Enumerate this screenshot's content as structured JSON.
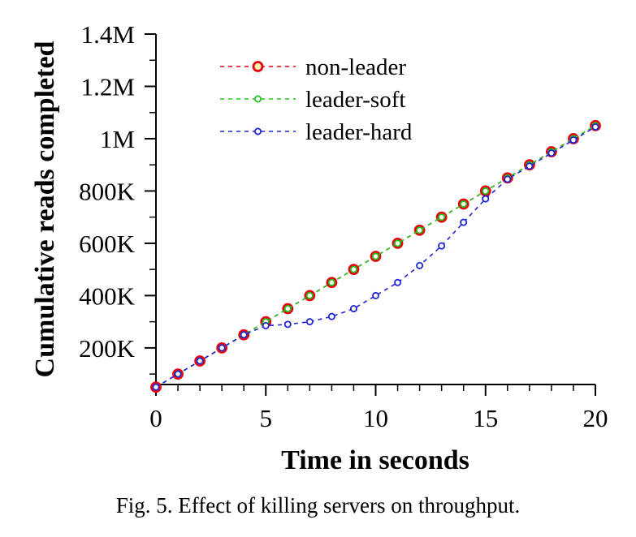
{
  "chart_data": {
    "type": "line",
    "title": "",
    "xlabel": "Time in seconds",
    "ylabel": "Cumulative reads completed",
    "xlim": [
      0,
      20
    ],
    "ylim": [
      60000,
      1400000
    ],
    "x_ticks": [
      0,
      5,
      10,
      15,
      20
    ],
    "x_tick_labels": [
      "0",
      "5",
      "10",
      "15",
      "20"
    ],
    "y_ticks": [
      200000,
      400000,
      600000,
      800000,
      1000000,
      1200000,
      1400000
    ],
    "y_tick_labels": [
      "200K",
      "400K",
      "600K",
      "800K",
      "1M",
      "1.2M",
      "1.4M"
    ],
    "legend_position": "top-left",
    "x": [
      0,
      1,
      2,
      3,
      4,
      5,
      6,
      7,
      8,
      9,
      10,
      11,
      12,
      13,
      14,
      15,
      16,
      17,
      18,
      19,
      20
    ],
    "series": [
      {
        "name": "non-leader",
        "color": "#e8000f",
        "marker": "large-open-circle",
        "values": [
          50000,
          100000,
          150000,
          200000,
          250000,
          300000,
          350000,
          400000,
          450000,
          500000,
          550000,
          600000,
          650000,
          700000,
          750000,
          800000,
          850000,
          900000,
          950000,
          1000000,
          1050000
        ]
      },
      {
        "name": "leader-soft",
        "color": "#22c41c",
        "marker": "small-open-circle",
        "values": [
          50000,
          100000,
          150000,
          200000,
          250000,
          300000,
          350000,
          400000,
          450000,
          500000,
          550000,
          600000,
          650000,
          700000,
          750000,
          800000,
          850000,
          900000,
          950000,
          1000000,
          1050000
        ]
      },
      {
        "name": "leader-hard",
        "color": "#1f26d4",
        "marker": "small-open-circle",
        "values": [
          50000,
          100000,
          150000,
          200000,
          250000,
          285000,
          290000,
          300000,
          320000,
          350000,
          400000,
          450000,
          515000,
          590000,
          680000,
          770000,
          845000,
          895000,
          945000,
          995000,
          1045000
        ]
      }
    ]
  },
  "caption": "Fig. 5.   Effect of killing servers on throughput."
}
